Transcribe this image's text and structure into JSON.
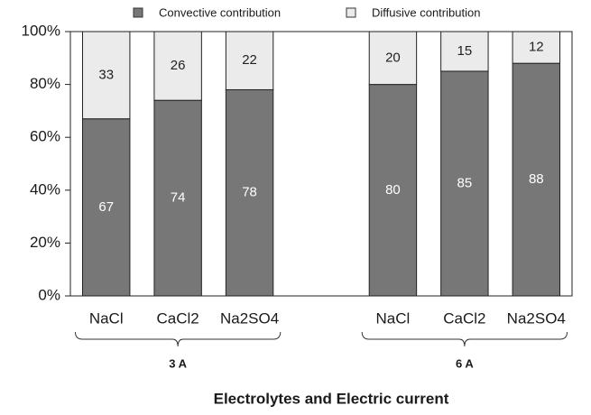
{
  "chart_data": {
    "type": "bar",
    "stacked": true,
    "x_label": "Electrolytes and Electric current",
    "categories": [
      "NaCl",
      "CaCl2",
      "Na2SO4",
      null,
      "NaCl",
      "CaCl2",
      "Na2SO4"
    ],
    "groups": [
      "3 A",
      "6 A"
    ],
    "series": [
      {
        "name": "Convective contribution",
        "color": "#777777",
        "values": [
          67,
          74,
          78,
          null,
          80,
          85,
          88
        ]
      },
      {
        "name": "Diffusive contribution",
        "color": "#ebebeb",
        "values": [
          33,
          26,
          22,
          null,
          20,
          15,
          12
        ]
      }
    ],
    "ylim": [
      0,
      100
    ],
    "yticks": [
      {
        "value": 0,
        "label": "0%"
      },
      {
        "value": 20,
        "label": "20%"
      },
      {
        "value": 40,
        "label": "40%"
      },
      {
        "value": 60,
        "label": "60%"
      },
      {
        "value": 80,
        "label": "80%"
      },
      {
        "value": 100,
        "label": "100%"
      }
    ],
    "legend": "top"
  }
}
